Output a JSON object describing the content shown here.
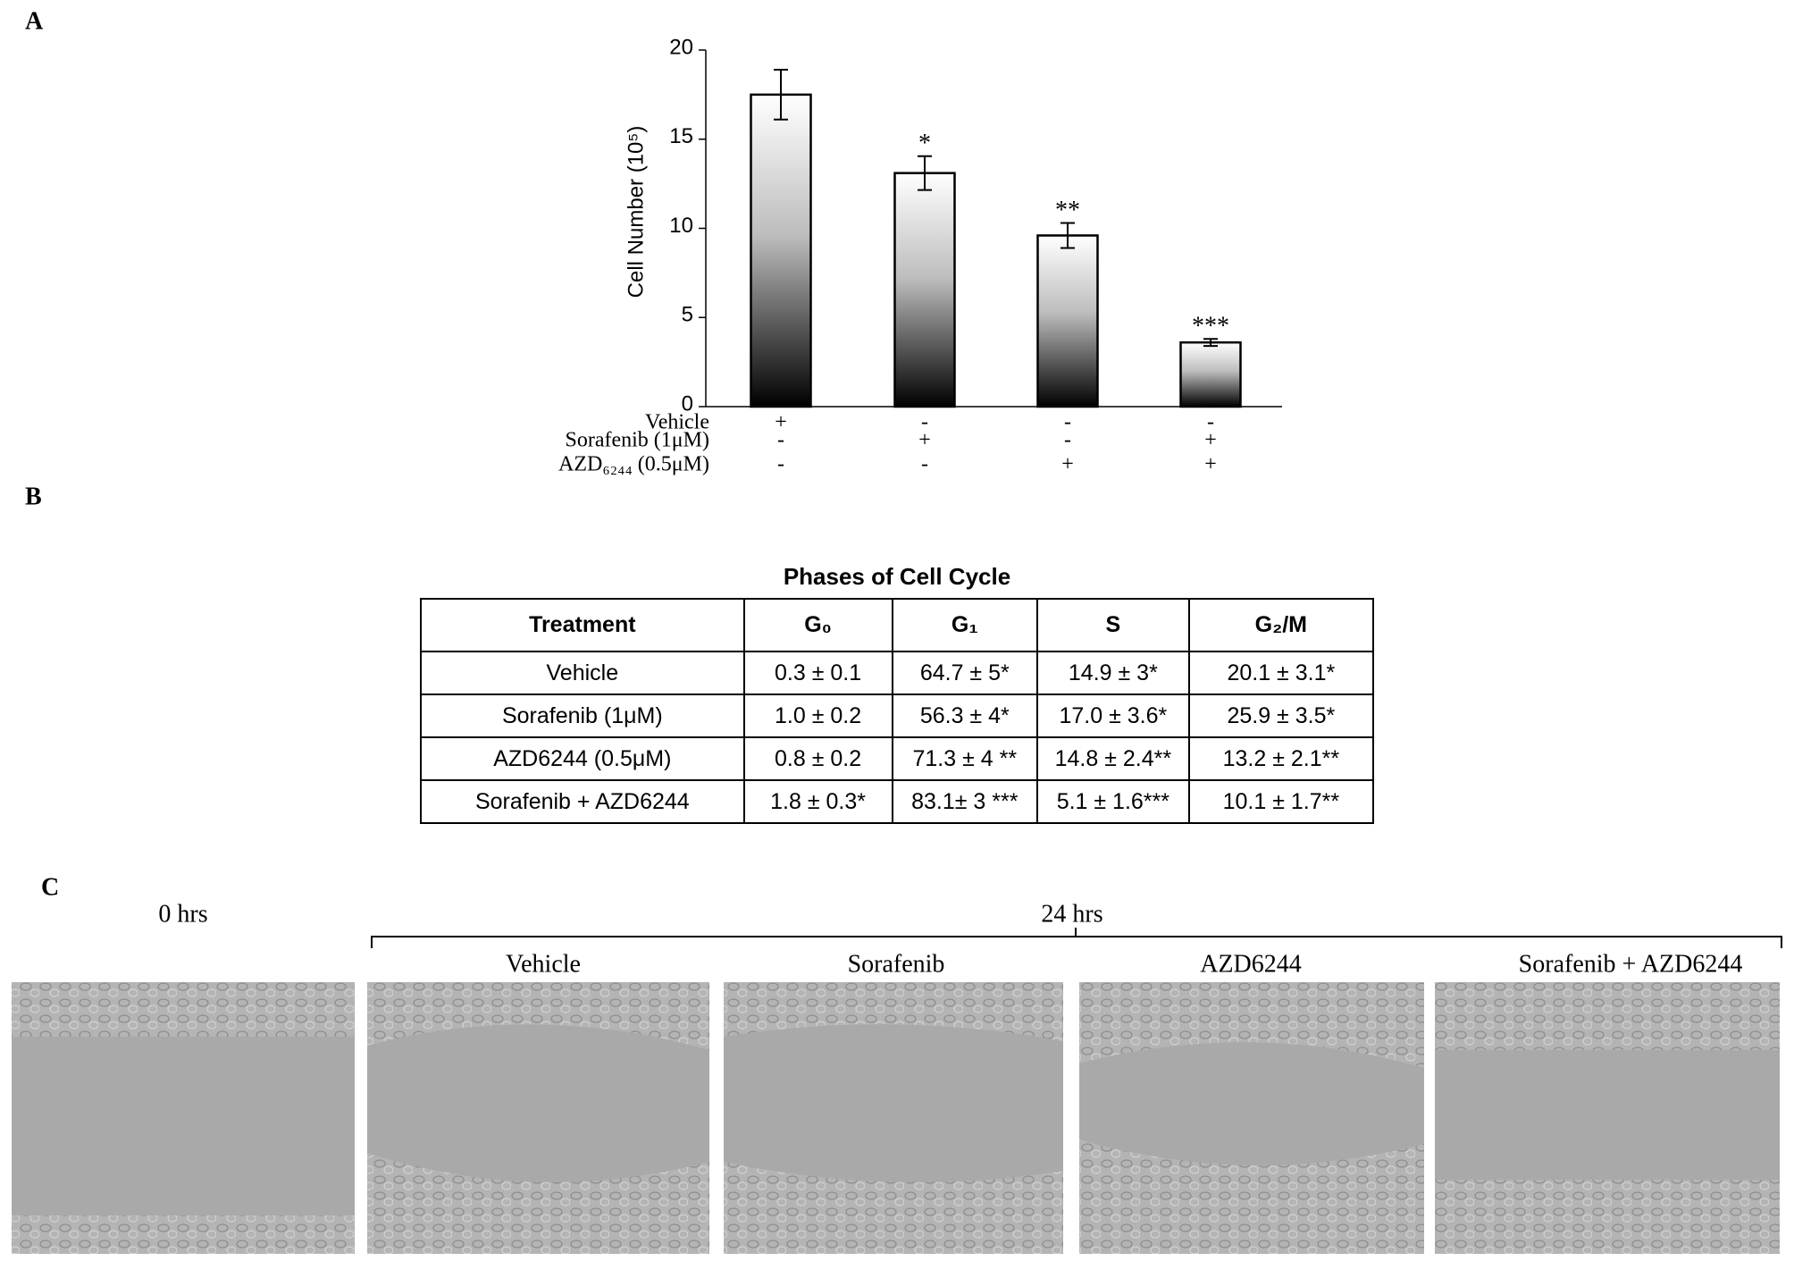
{
  "panels": {
    "a": "A",
    "b": "B",
    "c": "C"
  },
  "chart_data": {
    "type": "bar",
    "y_label": "Cell Number (10⁵)",
    "values": [
      17.5,
      13.1,
      9.6,
      3.6
    ],
    "errors": [
      1.4,
      0.95,
      0.7,
      0.2
    ],
    "significance": [
      null,
      "*",
      "**",
      "***"
    ],
    "treatments": [
      {
        "name": "Vehicle",
        "signs": [
          "+",
          "-",
          "-",
          "-"
        ]
      },
      {
        "name": "Sorafenib (1μM)",
        "signs": [
          "-",
          "+",
          "-",
          "+"
        ]
      },
      {
        "name": "AZD₆₂₄₄ (0.5μM)",
        "signs": [
          "-",
          "-",
          "+",
          "+"
        ]
      }
    ],
    "ylim": [
      0,
      20
    ],
    "yticks": [
      0,
      5,
      10,
      15,
      20
    ]
  },
  "table": {
    "title": "Phases of Cell Cycle",
    "header": [
      "Treatment",
      "G₀",
      "G₁",
      "S",
      "G₂/M"
    ],
    "rows": [
      [
        "Vehicle",
        "0.3 ± 0.1",
        "64.7 ± 5*",
        "14.9 ± 3*",
        "20.1 ± 3.1*"
      ],
      [
        "Sorafenib (1μM)",
        "1.0 ± 0.2",
        "56.3 ± 4*",
        "17.0 ± 3.6*",
        "25.9 ± 3.5*"
      ],
      [
        "AZD6244 (0.5μM)",
        "0.8 ± 0.2",
        "71.3 ± 4 **",
        "14.8 ± 2.4**",
        "13.2 ± 2.1**"
      ],
      [
        "Sorafenib + AZD6244",
        "1.8 ± 0.3*",
        "83.1± 3 ***",
        "5.1 ± 1.6***",
        "10.1 ± 1.7**"
      ]
    ]
  },
  "migration": {
    "time_0": "0 hrs",
    "time_24": "24 hrs",
    "conditions": [
      "Vehicle",
      "Sorafenib",
      "AZD6244",
      "Sorafenib + AZD6244"
    ]
  }
}
